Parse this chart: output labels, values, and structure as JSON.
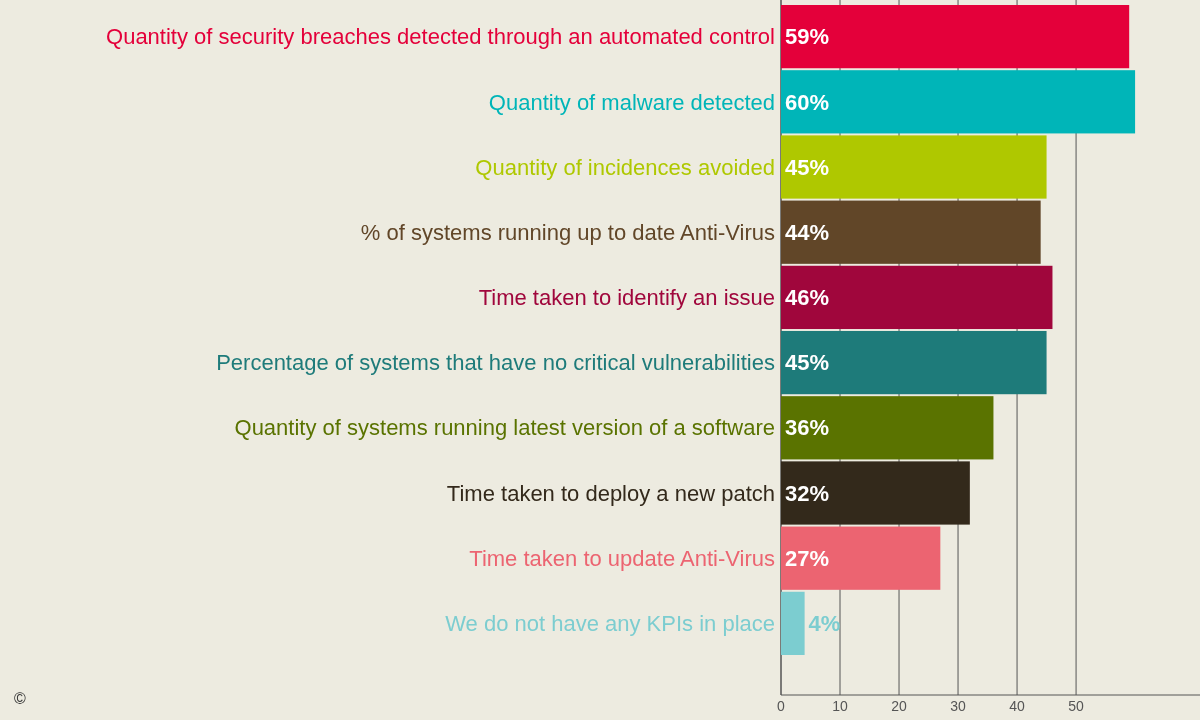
{
  "chart_data": {
    "type": "bar",
    "orientation": "horizontal",
    "categories": [
      "Quantity of security breaches detected through an automated control",
      "Quantity of malware detected",
      "Quantity of incidences avoided",
      "% of systems running up to date Anti-Virus",
      "Time taken to identify an issue",
      "Percentage of systems that have no critical vulnerabilities",
      "Quantity of systems running latest version of a software",
      "Time taken to deploy a new patch",
      "Time taken to update Anti-Virus",
      "We do not have any KPIs in place"
    ],
    "values": [
      59,
      60,
      45,
      44,
      46,
      45,
      36,
      32,
      27,
      4
    ],
    "value_labels": [
      "59%",
      "60%",
      "45%",
      "44%",
      "46%",
      "45%",
      "36%",
      "32%",
      "27%",
      "4%"
    ],
    "colors": [
      "#e4003a",
      "#00b5b8",
      "#afc800",
      "#614628",
      "#a0063c",
      "#1e7b7a",
      "#5a7300",
      "#33291b",
      "#ec6471",
      "#7ccdd0"
    ],
    "xlim": [
      0,
      71
    ],
    "xticks": [
      0,
      10,
      20,
      30,
      40,
      50
    ],
    "grid": "x",
    "annotations": [
      "©"
    ]
  }
}
